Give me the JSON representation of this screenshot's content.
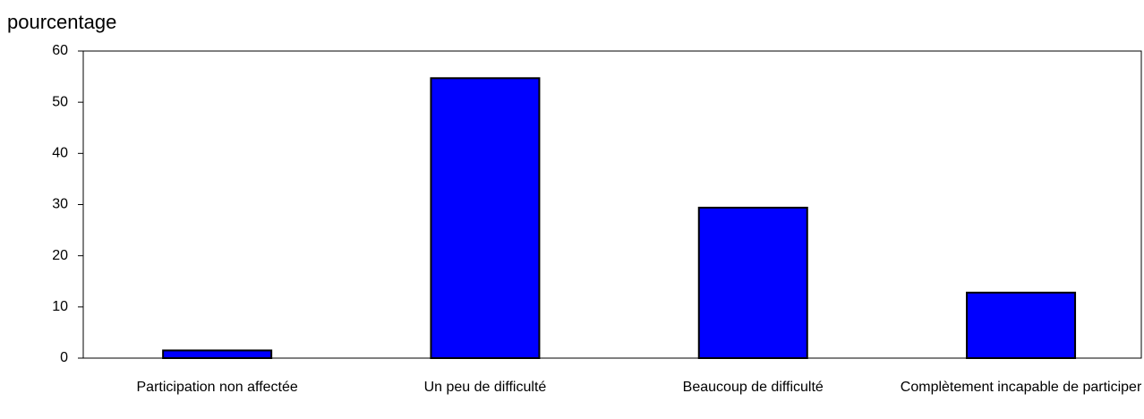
{
  "chart_data": {
    "type": "bar",
    "y_axis_label": "pourcentage",
    "categories": [
      "Participation non affectée",
      "Un peu de difficulté",
      "Beaucoup de difficulté",
      "Complètement incapable de participer"
    ],
    "values": [
      1.5,
      54.7,
      29.4,
      12.8
    ],
    "color": "#0000ff",
    "ylim": [
      0,
      60
    ],
    "yticks": [
      0,
      10,
      20,
      30,
      40,
      50,
      60
    ],
    "grid": false
  }
}
